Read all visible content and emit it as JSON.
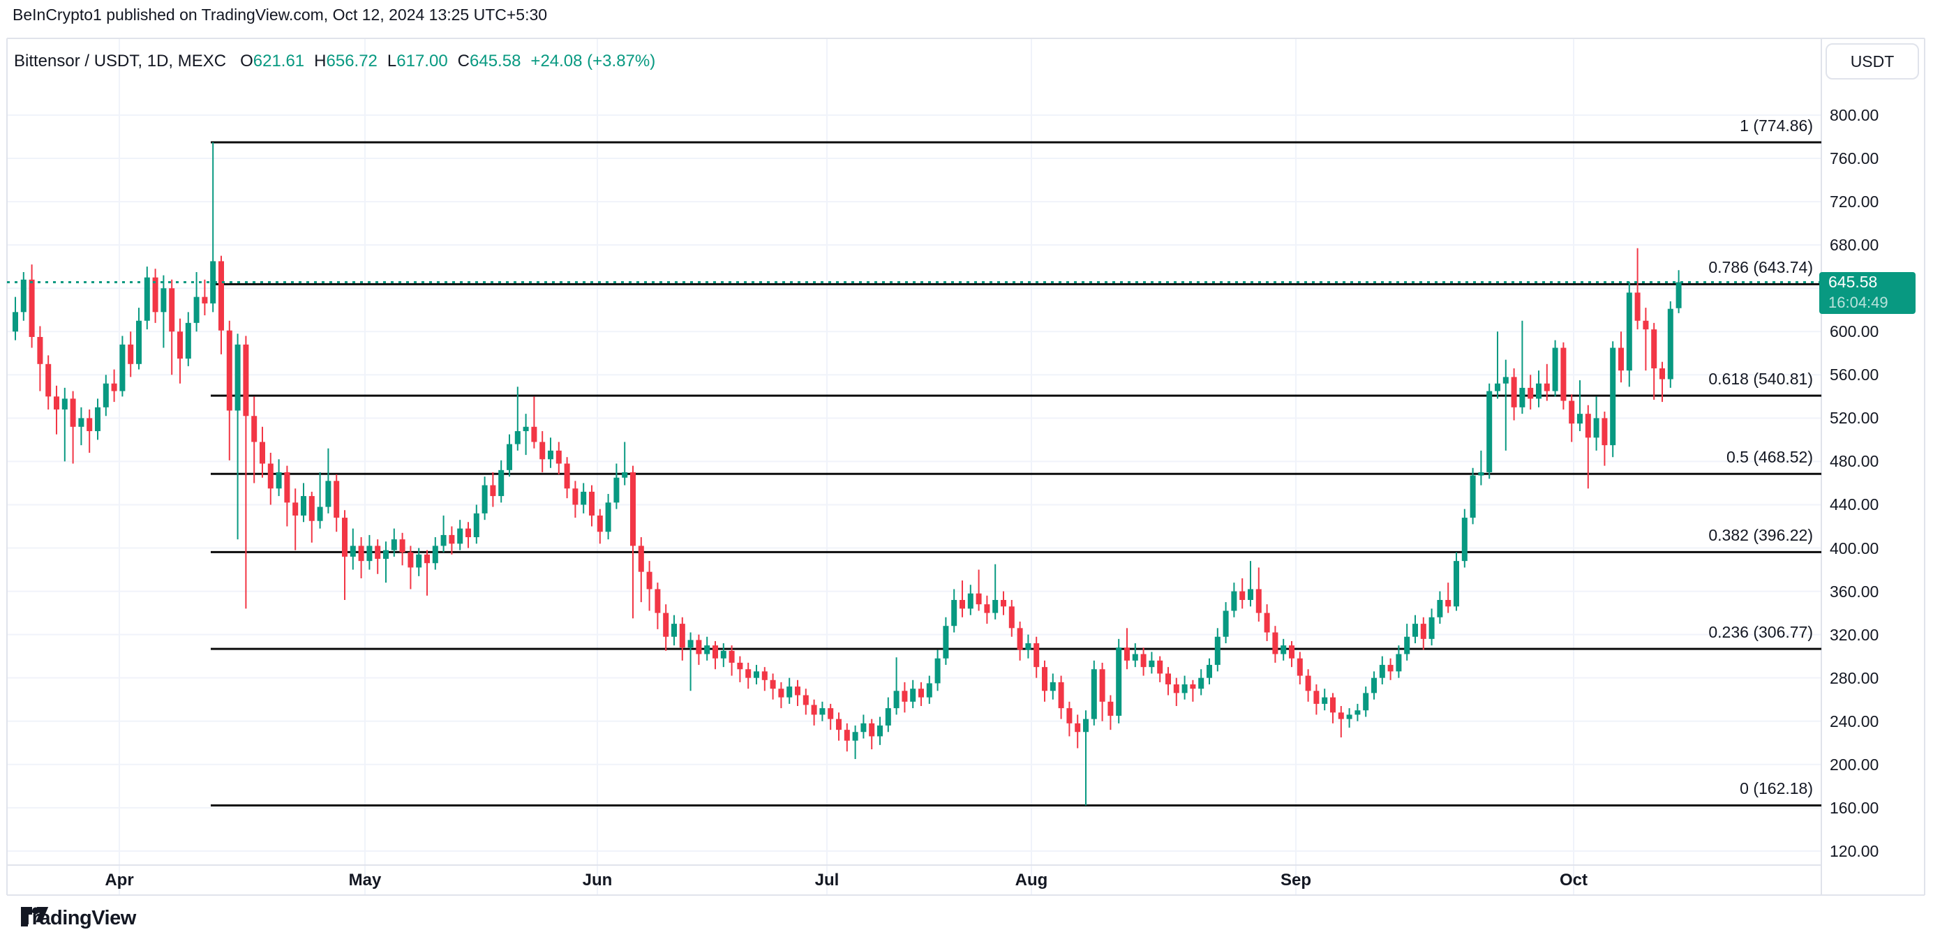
{
  "header": {
    "attribution": "BeInCrypto1 published on TradingView.com, Oct 12, 2024 13:25 UTC+5:30"
  },
  "legend": {
    "symbol": "Bittensor / USDT, 1D, MEXC",
    "values": [
      {
        "k": "O",
        "v": "621.61"
      },
      {
        "k": "H",
        "v": "656.72"
      },
      {
        "k": "L",
        "v": "617.00"
      },
      {
        "k": "C",
        "v": "645.58"
      }
    ],
    "change": "+24.08 (+3.87%)"
  },
  "price_scale": {
    "currency": "USDT",
    "ticks": [
      800,
      760,
      720,
      680,
      640,
      600,
      560,
      520,
      480,
      440,
      400,
      360,
      320,
      280,
      240,
      200,
      160,
      120
    ]
  },
  "price_label": {
    "value": "645.58",
    "countdown": "16:04:49"
  },
  "time_scale": {
    "months": [
      {
        "label": "Apr",
        "x": 171
      },
      {
        "label": "May",
        "x": 523
      },
      {
        "label": "Jun",
        "x": 856
      },
      {
        "label": "Jul",
        "x": 1185
      },
      {
        "label": "Aug",
        "x": 1478
      },
      {
        "label": "Sep",
        "x": 1857
      },
      {
        "label": "Oct",
        "x": 2255
      }
    ]
  },
  "footer": {
    "logo_text": "TradingView"
  },
  "colors": {
    "up": "#089981",
    "down": "#f23645",
    "text": "#131722",
    "grid": "#f0f3fa",
    "border": "#e0e3eb",
    "fib_line": "#0b0b0b",
    "price_line": "#089981",
    "label_bg": "#089981"
  },
  "chart_data": {
    "type": "candlestick",
    "title": "Bittensor / USDT, 1D, MEXC",
    "symbol": "Bittensor / USDT",
    "interval": "1D",
    "exchange": "MEXC",
    "last_candle": {
      "open": 621.61,
      "high": 656.72,
      "low": 617.0,
      "close": 645.58,
      "change": "+24.08 (+3.87%)"
    },
    "current_price": 645.58,
    "ylim": [
      120,
      800
    ],
    "x_months": [
      "Apr",
      "May",
      "Jun",
      "Jul",
      "Aug",
      "Sep",
      "Oct"
    ],
    "fib_retracement": {
      "start_x": 302,
      "levels": [
        {
          "ratio": "1",
          "price": 774.86
        },
        {
          "ratio": "0.786",
          "price": 643.74
        },
        {
          "ratio": "0.618",
          "price": 540.81
        },
        {
          "ratio": "0.5",
          "price": 468.52
        },
        {
          "ratio": "0.382",
          "price": 396.22
        },
        {
          "ratio": "0.236",
          "price": 306.77
        },
        {
          "ratio": "0",
          "price": 162.18
        }
      ]
    },
    "candles": [
      [
        600,
        632,
        592,
        618
      ],
      [
        618,
        655,
        610,
        648
      ],
      [
        648,
        662,
        585,
        595
      ],
      [
        595,
        605,
        545,
        570
      ],
      [
        570,
        578,
        528,
        540
      ],
      [
        540,
        550,
        505,
        528
      ],
      [
        528,
        548,
        480,
        538
      ],
      [
        538,
        545,
        478,
        512
      ],
      [
        512,
        530,
        495,
        520
      ],
      [
        520,
        528,
        488,
        508
      ],
      [
        508,
        538,
        500,
        530
      ],
      [
        530,
        560,
        522,
        552
      ],
      [
        552,
        565,
        535,
        545
      ],
      [
        545,
        596,
        540,
        588
      ],
      [
        588,
        600,
        558,
        570
      ],
      [
        570,
        622,
        565,
        610
      ],
      [
        610,
        660,
        602,
        650
      ],
      [
        650,
        658,
        608,
        618
      ],
      [
        618,
        652,
        585,
        640
      ],
      [
        640,
        648,
        560,
        600
      ],
      [
        600,
        612,
        552,
        575
      ],
      [
        575,
        618,
        568,
        608
      ],
      [
        608,
        655,
        600,
        632
      ],
      [
        632,
        648,
        615,
        626
      ],
      [
        626,
        774.86,
        618,
        665
      ],
      [
        665,
        670,
        579,
        601
      ],
      [
        601,
        610,
        481,
        527
      ],
      [
        527,
        598,
        408,
        588
      ],
      [
        588,
        596,
        344,
        522
      ],
      [
        522,
        540,
        460,
        498
      ],
      [
        498,
        512,
        465,
        478
      ],
      [
        478,
        488,
        440,
        455
      ],
      [
        455,
        482,
        448,
        470
      ],
      [
        470,
        476,
        420,
        442
      ],
      [
        442,
        455,
        398,
        430
      ],
      [
        430,
        460,
        424,
        448
      ],
      [
        448,
        452,
        405,
        425
      ],
      [
        425,
        470,
        418,
        438
      ],
      [
        438,
        492,
        432,
        462
      ],
      [
        462,
        468,
        415,
        428
      ],
      [
        428,
        435,
        352,
        392
      ],
      [
        392,
        418,
        380,
        402
      ],
      [
        402,
        410,
        372,
        388
      ],
      [
        388,
        412,
        380,
        402
      ],
      [
        402,
        408,
        376,
        390
      ],
      [
        390,
        406,
        368,
        398
      ],
      [
        398,
        418,
        392,
        408
      ],
      [
        408,
        414,
        384,
        396
      ],
      [
        396,
        402,
        362,
        382
      ],
      [
        382,
        400,
        374,
        394
      ],
      [
        394,
        398,
        356,
        386
      ],
      [
        386,
        410,
        380,
        402
      ],
      [
        402,
        430,
        396,
        412
      ],
      [
        412,
        420,
        394,
        404
      ],
      [
        404,
        426,
        398,
        418
      ],
      [
        418,
        424,
        400,
        410
      ],
      [
        410,
        440,
        404,
        432
      ],
      [
        432,
        466,
        426,
        458
      ],
      [
        458,
        470,
        438,
        448
      ],
      [
        448,
        481,
        442,
        472
      ],
      [
        472,
        505,
        466,
        496
      ],
      [
        496,
        549,
        490,
        508
      ],
      [
        508,
        524,
        486,
        512
      ],
      [
        512,
        540,
        492,
        498
      ],
      [
        498,
        508,
        470,
        482
      ],
      [
        482,
        502,
        474,
        490
      ],
      [
        490,
        498,
        468,
        478
      ],
      [
        478,
        484,
        446,
        455
      ],
      [
        455,
        462,
        428,
        440
      ],
      [
        440,
        460,
        432,
        452
      ],
      [
        452,
        458,
        420,
        430
      ],
      [
        430,
        436,
        404,
        415
      ],
      [
        415,
        450,
        408,
        442
      ],
      [
        442,
        478,
        436,
        465
      ],
      [
        465,
        498,
        458,
        470
      ],
      [
        470,
        476,
        335,
        402
      ],
      [
        402,
        410,
        350,
        378
      ],
      [
        378,
        388,
        342,
        362
      ],
      [
        362,
        368,
        325,
        340
      ],
      [
        340,
        348,
        305,
        318
      ],
      [
        318,
        338,
        310,
        330
      ],
      [
        330,
        336,
        296,
        308
      ],
      [
        308,
        322,
        268,
        315
      ],
      [
        315,
        320,
        292,
        302
      ],
      [
        302,
        318,
        296,
        310
      ],
      [
        310,
        314,
        288,
        298
      ],
      [
        298,
        312,
        290,
        305
      ],
      [
        305,
        310,
        282,
        294
      ],
      [
        294,
        300,
        276,
        288
      ],
      [
        288,
        294,
        270,
        280
      ],
      [
        280,
        292,
        274,
        286
      ],
      [
        286,
        290,
        268,
        278
      ],
      [
        278,
        284,
        260,
        270
      ],
      [
        270,
        276,
        252,
        262
      ],
      [
        262,
        280,
        256,
        272
      ],
      [
        272,
        278,
        254,
        264
      ],
      [
        264,
        270,
        246,
        255
      ],
      [
        255,
        260,
        236,
        246
      ],
      [
        246,
        258,
        240,
        252
      ],
      [
        252,
        256,
        232,
        242
      ],
      [
        242,
        248,
        222,
        232
      ],
      [
        232,
        238,
        212,
        222
      ],
      [
        222,
        236,
        205,
        230
      ],
      [
        230,
        246,
        224,
        238
      ],
      [
        238,
        242,
        214,
        226
      ],
      [
        226,
        244,
        218,
        236
      ],
      [
        236,
        262,
        230,
        252
      ],
      [
        252,
        299,
        246,
        268
      ],
      [
        268,
        276,
        248,
        258
      ],
      [
        258,
        278,
        252,
        270
      ],
      [
        270,
        276,
        254,
        262
      ],
      [
        262,
        282,
        256,
        275
      ],
      [
        275,
        306,
        268,
        298
      ],
      [
        298,
        336,
        292,
        328
      ],
      [
        328,
        362,
        322,
        352
      ],
      [
        352,
        370,
        336,
        344
      ],
      [
        344,
        366,
        338,
        358
      ],
      [
        358,
        380,
        342,
        348
      ],
      [
        348,
        356,
        330,
        340
      ],
      [
        340,
        385,
        334,
        352
      ],
      [
        352,
        360,
        338,
        346
      ],
      [
        346,
        352,
        318,
        326
      ],
      [
        326,
        332,
        296,
        306
      ],
      [
        306,
        320,
        298,
        312
      ],
      [
        312,
        318,
        280,
        290
      ],
      [
        290,
        296,
        258,
        268
      ],
      [
        268,
        284,
        260,
        276
      ],
      [
        276,
        282,
        242,
        252
      ],
      [
        252,
        258,
        226,
        238
      ],
      [
        238,
        246,
        215,
        230
      ],
      [
        230,
        250,
        162.18,
        242
      ],
      [
        242,
        296,
        236,
        288
      ],
      [
        288,
        294,
        240,
        258
      ],
      [
        258,
        264,
        232,
        245
      ],
      [
        245,
        316,
        238,
        308
      ],
      [
        308,
        326,
        288,
        296
      ],
      [
        296,
        312,
        290,
        302
      ],
      [
        302,
        308,
        282,
        290
      ],
      [
        290,
        304,
        284,
        296
      ],
      [
        296,
        300,
        276,
        284
      ],
      [
        284,
        290,
        264,
        274
      ],
      [
        274,
        280,
        254,
        266
      ],
      [
        266,
        282,
        260,
        274
      ],
      [
        274,
        278,
        258,
        270
      ],
      [
        270,
        288,
        264,
        280
      ],
      [
        280,
        298,
        274,
        292
      ],
      [
        292,
        326,
        286,
        318
      ],
      [
        318,
        350,
        312,
        342
      ],
      [
        342,
        368,
        336,
        360
      ],
      [
        360,
        372,
        344,
        352
      ],
      [
        352,
        388,
        346,
        362
      ],
      [
        362,
        382,
        332,
        340
      ],
      [
        340,
        348,
        314,
        322
      ],
      [
        322,
        328,
        294,
        302
      ],
      [
        302,
        316,
        296,
        310
      ],
      [
        310,
        314,
        290,
        298
      ],
      [
        298,
        304,
        274,
        282
      ],
      [
        282,
        288,
        258,
        268
      ],
      [
        268,
        274,
        246,
        256
      ],
      [
        256,
        270,
        250,
        262
      ],
      [
        262,
        266,
        238,
        248
      ],
      [
        248,
        254,
        225,
        242
      ],
      [
        242,
        252,
        234,
        246
      ],
      [
        246,
        256,
        240,
        250
      ],
      [
        250,
        272,
        244,
        266
      ],
      [
        266,
        286,
        260,
        280
      ],
      [
        280,
        300,
        274,
        292
      ],
      [
        292,
        298,
        278,
        286
      ],
      [
        286,
        310,
        280,
        302
      ],
      [
        302,
        330,
        296,
        318
      ],
      [
        318,
        338,
        312,
        330
      ],
      [
        330,
        336,
        306,
        316
      ],
      [
        316,
        344,
        310,
        336
      ],
      [
        336,
        360,
        330,
        352
      ],
      [
        352,
        368,
        340,
        346
      ],
      [
        346,
        396,
        342,
        388
      ],
      [
        388,
        436,
        382,
        428
      ],
      [
        428,
        474,
        422,
        467
      ],
      [
        467,
        490,
        458,
        470
      ],
      [
        470,
        552,
        464,
        545
      ],
      [
        545,
        600,
        538,
        552
      ],
      [
        552,
        574,
        490,
        558
      ],
      [
        558,
        566,
        518,
        530
      ],
      [
        530,
        610,
        524,
        548
      ],
      [
        548,
        560,
        528,
        538
      ],
      [
        538,
        564,
        530,
        552
      ],
      [
        552,
        570,
        536,
        545
      ],
      [
        545,
        592,
        540,
        585
      ],
      [
        585,
        590,
        528,
        536
      ],
      [
        536,
        542,
        498,
        515
      ],
      [
        515,
        555,
        508,
        524
      ],
      [
        524,
        532,
        455,
        502
      ],
      [
        502,
        540,
        490,
        520
      ],
      [
        520,
        526,
        476,
        495
      ],
      [
        495,
        591,
        484,
        585
      ],
      [
        585,
        600,
        553,
        564
      ],
      [
        564,
        646,
        549,
        636
      ],
      [
        636,
        677,
        602,
        610
      ],
      [
        610,
        622,
        564,
        602
      ],
      [
        602,
        608,
        537,
        566
      ],
      [
        566,
        572,
        535,
        556
      ],
      [
        556,
        628,
        548,
        621
      ],
      [
        621.61,
        656.72,
        617,
        645.58
      ]
    ]
  }
}
